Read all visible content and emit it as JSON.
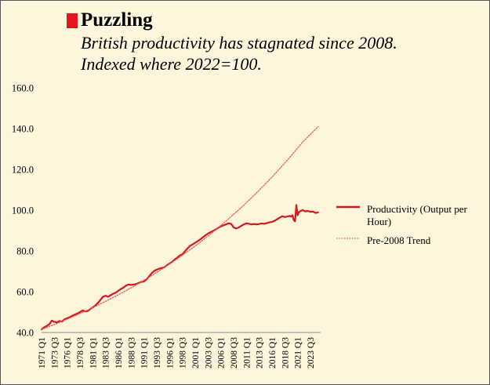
{
  "header": {
    "title": "Puzzling",
    "subtitle_line1": "British productivity has stagnated since 2008.",
    "subtitle_line2": "Indexed where 2022=100."
  },
  "colors": {
    "accent": "#e8141b",
    "productivity": "#d4181c",
    "trend": "#ee5555",
    "background": "#fdf6dd"
  },
  "chart_data": {
    "type": "line",
    "ylim": [
      40,
      160
    ],
    "yticks": [
      "40.0",
      "60.0",
      "80.0",
      "100.0",
      "120.0",
      "140.0",
      "160.0"
    ],
    "xlim": [
      1971.0,
      2025.5
    ],
    "xticks": [
      {
        "label": "1971 Q1",
        "t": 1971.0
      },
      {
        "label": "1973 Q3",
        "t": 1973.5
      },
      {
        "label": "1976 Q1",
        "t": 1976.0
      },
      {
        "label": "1978 Q3",
        "t": 1978.5
      },
      {
        "label": "1981 Q1",
        "t": 1981.0
      },
      {
        "label": "1983 Q3",
        "t": 1983.5
      },
      {
        "label": "1986 Q1",
        "t": 1986.0
      },
      {
        "label": "1988 Q3",
        "t": 1988.5
      },
      {
        "label": "1991 Q1",
        "t": 1991.0
      },
      {
        "label": "1993 Q3",
        "t": 1993.5
      },
      {
        "label": "1996 Q1",
        "t": 1996.0
      },
      {
        "label": "1998 Q3",
        "t": 1998.5
      },
      {
        "label": "2001 Q1",
        "t": 2001.0
      },
      {
        "label": "2003 Q3",
        "t": 2003.5
      },
      {
        "label": "2006 Q1",
        "t": 2006.0
      },
      {
        "label": "2008 Q3",
        "t": 2008.5
      },
      {
        "label": "2011 Q1",
        "t": 2011.0
      },
      {
        "label": "2013 Q3",
        "t": 2013.5
      },
      {
        "label": "2016 Q1",
        "t": 2016.0
      },
      {
        "label": "2018 Q3",
        "t": 2018.5
      },
      {
        "label": "2021 Q1",
        "t": 2021.0
      },
      {
        "label": "2023 Q3",
        "t": 2023.5
      }
    ],
    "series": [
      {
        "name": "Productivity (Output per Hour)",
        "style": "solid",
        "x": [
          1971.0,
          1971.5,
          1972.0,
          1972.5,
          1973.0,
          1973.5,
          1974.0,
          1974.5,
          1975.0,
          1975.5,
          1976.0,
          1976.5,
          1977.0,
          1977.5,
          1978.0,
          1978.5,
          1979.0,
          1979.5,
          1980.0,
          1980.5,
          1981.0,
          1981.5,
          1982.0,
          1982.5,
          1983.0,
          1983.5,
          1984.0,
          1984.5,
          1985.0,
          1985.5,
          1986.0,
          1986.5,
          1987.0,
          1987.5,
          1988.0,
          1988.5,
          1989.0,
          1989.5,
          1990.0,
          1990.5,
          1991.0,
          1991.5,
          1992.0,
          1992.5,
          1993.0,
          1993.5,
          1994.0,
          1994.5,
          1995.0,
          1995.5,
          1996.0,
          1996.5,
          1997.0,
          1997.5,
          1998.0,
          1998.5,
          1999.0,
          1999.5,
          2000.0,
          2000.5,
          2001.0,
          2001.5,
          2002.0,
          2002.5,
          2003.0,
          2003.5,
          2004.0,
          2004.5,
          2005.0,
          2005.5,
          2006.0,
          2006.5,
          2007.0,
          2007.5,
          2008.0,
          2008.25,
          2008.5,
          2009.0,
          2009.5,
          2010.0,
          2010.5,
          2011.0,
          2011.5,
          2012.0,
          2012.5,
          2013.0,
          2013.5,
          2014.0,
          2014.5,
          2015.0,
          2015.5,
          2016.0,
          2016.5,
          2017.0,
          2017.5,
          2018.0,
          2018.5,
          2019.0,
          2019.5,
          2019.75,
          2020.0,
          2020.25,
          2020.5,
          2020.75,
          2021.0,
          2021.25,
          2021.5,
          2022.0,
          2022.5,
          2023.0,
          2023.5,
          2024.0,
          2024.5,
          2025.0
        ],
        "y": [
          41.5,
          42.5,
          43.2,
          44.0,
          45.8,
          45.2,
          45.0,
          45.6,
          45.3,
          46.5,
          47.0,
          47.5,
          48.2,
          48.8,
          49.3,
          50.0,
          50.8,
          50.3,
          50.5,
          51.5,
          52.3,
          53.2,
          54.5,
          56.0,
          57.5,
          58.0,
          57.5,
          58.3,
          59.0,
          59.5,
          60.5,
          61.3,
          62.0,
          63.0,
          63.5,
          63.3,
          63.5,
          63.8,
          64.3,
          64.8,
          65.0,
          66.0,
          67.5,
          69.0,
          70.2,
          70.8,
          71.3,
          71.6,
          72.0,
          73.0,
          73.8,
          74.6,
          75.8,
          76.7,
          77.8,
          78.3,
          79.8,
          81.2,
          82.5,
          83.2,
          84.0,
          84.8,
          85.7,
          86.7,
          87.6,
          88.5,
          89.2,
          89.8,
          90.5,
          91.3,
          92.0,
          92.5,
          93.0,
          93.5,
          93.3,
          92.5,
          91.5,
          91.0,
          91.5,
          92.3,
          93.0,
          93.5,
          93.3,
          93.0,
          93.2,
          93.0,
          93.2,
          93.5,
          93.3,
          93.6,
          94.0,
          94.2,
          94.8,
          95.5,
          96.3,
          97.0,
          96.6,
          96.9,
          97.2,
          96.8,
          97.5,
          95.2,
          94.5,
          102.5,
          97.5,
          99.0,
          99.5,
          100.0,
          99.4,
          99.6,
          99.2,
          99.3,
          98.6,
          98.9
        ]
      },
      {
        "name": "Pre-2008 Trend",
        "style": "dotted",
        "x": [
          1971.0,
          1974.0,
          1977.0,
          1980.0,
          1983.0,
          1986.0,
          1989.0,
          1992.0,
          1995.0,
          1998.0,
          2001.0,
          2004.0,
          2007.0,
          2010.0,
          2013.0,
          2016.0,
          2019.0,
          2022.0,
          2025.0
        ],
        "y": [
          41.5,
          44.4,
          47.6,
          51.0,
          54.6,
          58.5,
          62.6,
          67.1,
          71.9,
          77.0,
          82.4,
          88.3,
          94.6,
          101.3,
          108.5,
          116.2,
          124.5,
          133.4,
          141.0
        ]
      }
    ],
    "legend": [
      "Productivity (Output per Hour)",
      "Pre-2008 Trend"
    ],
    "legend_position": "right"
  }
}
